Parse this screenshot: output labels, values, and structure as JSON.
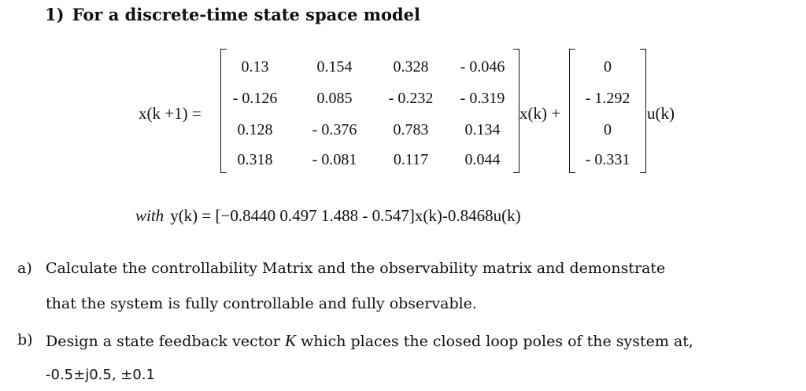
{
  "heading": {
    "number": "1)",
    "text": "For a discrete-time state space model"
  },
  "equation": {
    "lhs": "x(k +1) =",
    "matrix_A": [
      [
        "0.13",
        "0.154",
        "0.328",
        "- 0.046"
      ],
      [
        "- 0.126",
        "0.085",
        "- 0.232",
        "- 0.319"
      ],
      [
        "0.128",
        "- 0.376",
        "0.783",
        "0.134"
      ],
      [
        "0.318",
        "- 0.081",
        "0.117",
        "0.044"
      ]
    ],
    "state_term": "x(k) +",
    "matrix_B": [
      "0",
      "- 1.292",
      "0",
      "- 0.331"
    ],
    "input_term": "u(k)",
    "output_prefix": "with",
    "output": "y(k) = [−0.8440  0.497 1.488  - 0.547]x(k)-0.8468u(k)"
  },
  "questions": [
    {
      "label": "a)",
      "lines": [
        "Calculate the controllability Matrix and the observability matrix and demonstrate",
        "that the system is fully controllable and fully observable."
      ]
    },
    {
      "label": "b)",
      "line1_before": "Design a state feedback vector ",
      "line1_var": "K",
      "line1_after": " which places the closed loop poles of the system at,",
      "line2": "-0.5±j0.5,  ±0.1"
    }
  ]
}
